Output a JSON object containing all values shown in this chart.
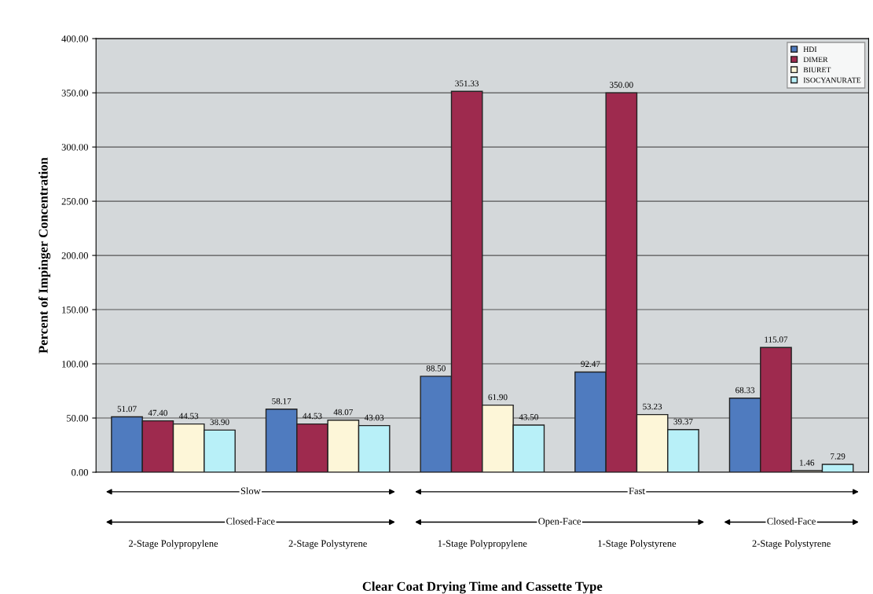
{
  "chart_data": {
    "type": "bar",
    "xlabel": "Clear Coat Drying Time and Cassette Type",
    "ylabel": "Percent of Impinger Concentration",
    "categories": [
      "2-Stage Polypropylene",
      "2-Stage Polystyrene",
      "1-Stage Polypropylene",
      "1-Stage Polystyrene",
      "2-Stage Polystyrene"
    ],
    "series": [
      {
        "name": "HDI",
        "color": "#4f7bbf",
        "values": [
          51.07,
          58.17,
          88.5,
          92.47,
          68.33
        ],
        "value_labels": [
          "51.07",
          "58.17",
          "88.50",
          "92.47",
          "68.33"
        ]
      },
      {
        "name": "DIMER",
        "color": "#9e2a4e",
        "values": [
          47.4,
          44.53,
          351.33,
          350.0,
          115.07
        ],
        "value_labels": [
          "47.40",
          "44.53",
          "351.33",
          "350.00",
          "115.07"
        ]
      },
      {
        "name": "BIURET",
        "color": "#fdf6d8",
        "values": [
          44.53,
          48.07,
          61.9,
          53.23,
          1.46
        ],
        "value_labels": [
          "44.53",
          "48.07",
          "61.90",
          "53.23",
          "1.46"
        ]
      },
      {
        "name": "ISOCYANURATE",
        "color": "#b8f0f8",
        "values": [
          38.9,
          43.03,
          43.5,
          39.37,
          7.29
        ],
        "value_labels": [
          "38.90",
          "43.03",
          "43.50",
          "39.37",
          "7.29"
        ]
      }
    ],
    "ylim": [
      0,
      400
    ],
    "yticks": [
      {
        "value": 0,
        "label": "0.00"
      },
      {
        "value": 50,
        "label": "50.00"
      },
      {
        "value": 100,
        "label": "100.00"
      },
      {
        "value": 150,
        "label": "150.00"
      },
      {
        "value": 200,
        "label": "200.00"
      },
      {
        "value": 250,
        "label": "250.00"
      },
      {
        "value": 300,
        "label": "300.00"
      },
      {
        "value": 350,
        "label": "350.00"
      },
      {
        "value": 400,
        "label": "400.00"
      }
    ],
    "grid": "y",
    "legend": "top right",
    "annotations": [
      "Slow",
      "Fast",
      "Closed-Face",
      "Open-Face",
      "Closed-Face"
    ]
  }
}
